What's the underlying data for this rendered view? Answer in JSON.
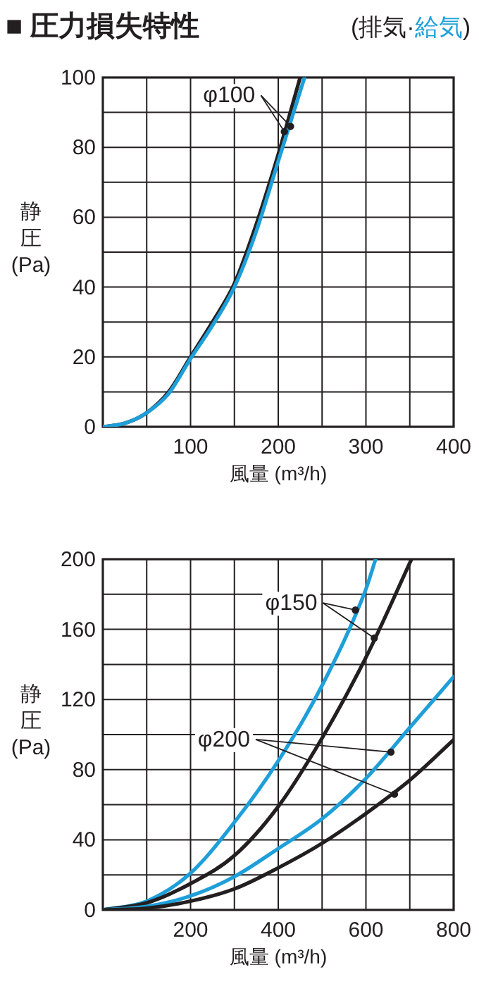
{
  "chart_data": [
    {
      "type": "line",
      "title": "■ 圧力損失特性",
      "subtitle": "(排気·給気)",
      "xlabel": "風量 (m³/h)",
      "ylabel": "静圧(Pa)",
      "xlim": [
        0,
        400
      ],
      "ylim": [
        0,
        100
      ],
      "xticks": [
        {
          "value": 50,
          "label": null
        },
        100,
        {
          "value": 150,
          "label": null
        },
        200,
        {
          "value": 250,
          "label": null
        },
        300,
        {
          "value": 350,
          "label": null
        },
        400
      ],
      "yticks": [
        0,
        {
          "value": 10,
          "label": null
        },
        20,
        {
          "value": 30,
          "label": null
        },
        40,
        {
          "value": 50,
          "label": null
        },
        60,
        {
          "value": 70,
          "label": null
        },
        80,
        {
          "value": 90,
          "label": null
        },
        100
      ],
      "grid": true,
      "series": [
        {
          "color": "#231f20",
          "x": [
            0,
            25,
            50,
            75,
            100,
            125,
            150,
            175,
            200,
            225
          ],
          "values": [
            0,
            1,
            4,
            10,
            20,
            30,
            41,
            58,
            78,
            100
          ]
        },
        {
          "color": "#1e9fd9",
          "x": [
            0,
            25,
            50,
            75,
            100,
            125,
            150,
            175,
            200,
            230
          ],
          "values": [
            0,
            1,
            4,
            9.5,
            19.5,
            29,
            40,
            56,
            76,
            100
          ]
        },
        {
          "type": "scatter",
          "color": "#231f20",
          "x": [
            214,
            207
          ],
          "values": [
            86,
            84.5
          ]
        }
      ],
      "annotations": [
        {
          "text": "φ100",
          "x": 214,
          "y": 86
        }
      ]
    },
    {
      "type": "line",
      "xlabel": "風量 (m³/h)",
      "ylabel": "静圧(Pa)",
      "xlim": [
        0,
        800
      ],
      "ylim": [
        0,
        200
      ],
      "xticks": [
        {
          "value": 100,
          "label": null
        },
        200,
        {
          "value": 300,
          "label": null
        },
        400,
        {
          "value": 500,
          "label": null
        },
        600,
        {
          "value": 700,
          "label": null
        },
        800
      ],
      "yticks": [
        0,
        {
          "value": 20,
          "label": null
        },
        40,
        {
          "value": 60,
          "label": null
        },
        80,
        {
          "value": 100,
          "label": null
        },
        120,
        {
          "value": 140,
          "label": null
        },
        160,
        {
          "value": 180,
          "label": null
        },
        200
      ],
      "grid": true,
      "series": [
        {
          "color": "#1e9fd9",
          "x": [
            0,
            100,
            200,
            300,
            400,
            500,
            600,
            622
          ],
          "values": [
            0,
            5,
            21,
            50,
            85,
            128,
            183,
            200
          ]
        },
        {
          "color": "#231f20",
          "x": [
            0,
            100,
            200,
            300,
            400,
            500,
            600,
            704
          ],
          "values": [
            0,
            4,
            15,
            31,
            59,
            98,
            144,
            200
          ]
        },
        {
          "color": "#1e9fd9",
          "x": [
            0,
            100,
            200,
            300,
            400,
            500,
            600,
            700,
            800
          ],
          "values": [
            0,
            2,
            8,
            19,
            35,
            52,
            75,
            104,
            133
          ]
        },
        {
          "color": "#231f20",
          "x": [
            0,
            100,
            200,
            300,
            400,
            500,
            600,
            700,
            800
          ],
          "values": [
            0,
            1,
            5,
            12,
            24,
            38,
            55,
            74,
            97
          ]
        },
        {
          "type": "scatter",
          "color": "#231f20",
          "x": [
            576,
            619
          ],
          "values": [
            171,
            155
          ]
        },
        {
          "type": "scatter",
          "color": "#231f20",
          "x": [
            657,
            665
          ],
          "values": [
            90,
            66
          ]
        }
      ],
      "annotations": [
        {
          "text": "φ150",
          "x": 576,
          "y": 171
        },
        {
          "text": "φ200",
          "x": 657,
          "y": 90
        }
      ]
    }
  ]
}
